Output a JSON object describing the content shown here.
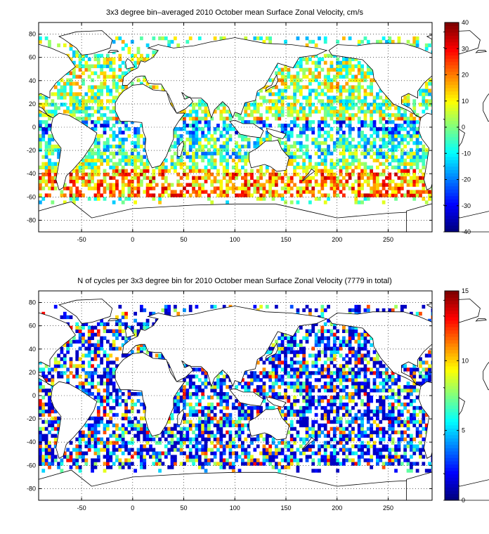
{
  "chart_data": [
    {
      "type": "heatmap",
      "title": "3x3 degree bin–averaged 2010 October mean Surface Zonal Velocity, cm/s",
      "x_ticks": [
        -50,
        0,
        50,
        100,
        150,
        200,
        250
      ],
      "y_ticks": [
        80,
        60,
        40,
        20,
        0,
        -20,
        -40,
        -60,
        -80
      ],
      "x_tick_labels": [
        "-50",
        "0",
        "50",
        "100",
        "150",
        "200",
        "250"
      ],
      "y_tick_labels": [
        "80",
        "60",
        "40",
        "20",
        "0",
        "-20",
        "-40",
        "-60",
        "-80"
      ],
      "xlim": [
        -92,
        293
      ],
      "ylim": [
        -90,
        90
      ],
      "grid": "dotted",
      "colorbar": {
        "range": [
          -40,
          40
        ],
        "ticks": [
          40,
          30,
          20,
          10,
          0,
          -10,
          -20,
          -30,
          -40
        ],
        "tick_labels": [
          "40",
          "30",
          "20",
          "10",
          "0",
          "-10",
          "-20",
          "-30",
          "-40"
        ],
        "colormap": "jet"
      },
      "bin_size_deg": 3
    },
    {
      "type": "heatmap",
      "title": "N of cycles per 3x3 degree bin for 2010 October mean Surface Zonal Velocity (7779 in total)",
      "x_ticks": [
        -50,
        0,
        50,
        100,
        150,
        200,
        250
      ],
      "y_ticks": [
        80,
        60,
        40,
        20,
        0,
        -20,
        -40,
        -60,
        -80
      ],
      "x_tick_labels": [
        "-50",
        "0",
        "50",
        "100",
        "150",
        "200",
        "250"
      ],
      "y_tick_labels": [
        "80",
        "60",
        "40",
        "20",
        "0",
        "-20",
        "-40",
        "-60",
        "-80"
      ],
      "xlim": [
        -92,
        293
      ],
      "ylim": [
        -90,
        90
      ],
      "grid": "dotted",
      "colorbar": {
        "range": [
          0,
          15
        ],
        "ticks": [
          15,
          10,
          5,
          0
        ],
        "tick_labels": [
          "15",
          "10",
          "5",
          "0"
        ],
        "colormap": "jet"
      },
      "bin_size_deg": 3
    }
  ]
}
